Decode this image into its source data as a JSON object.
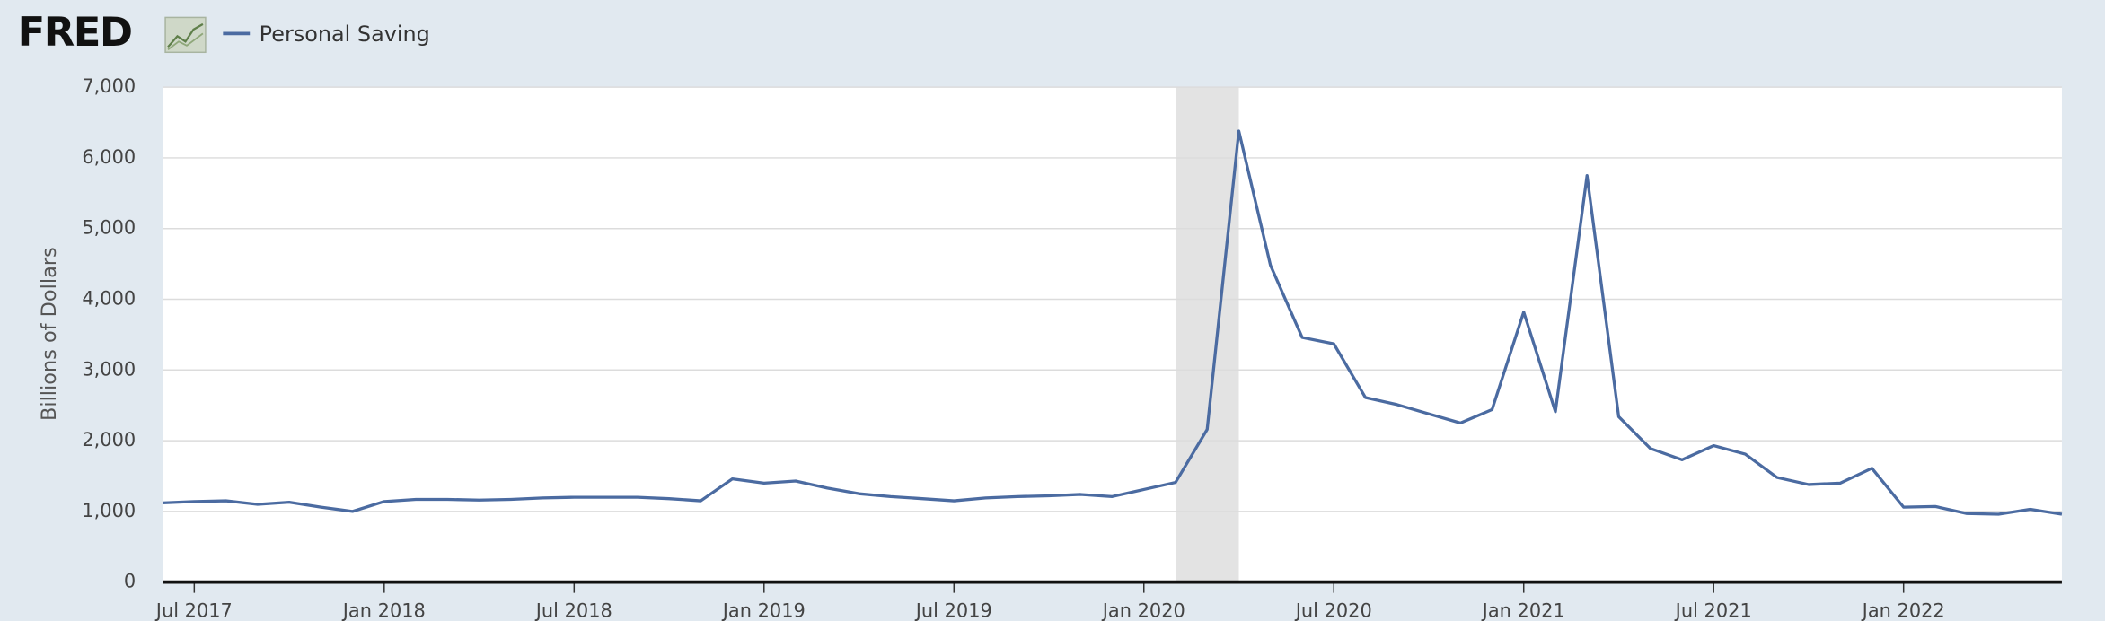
{
  "logo": "FRED",
  "chart_data": {
    "type": "line",
    "y_label": "Billions of Dollars",
    "x": [
      "2017-06",
      "2017-07",
      "2017-08",
      "2017-09",
      "2017-10",
      "2017-11",
      "2017-12",
      "2018-01",
      "2018-02",
      "2018-03",
      "2018-04",
      "2018-05",
      "2018-06",
      "2018-07",
      "2018-08",
      "2018-09",
      "2018-10",
      "2018-11",
      "2018-12",
      "2019-01",
      "2019-02",
      "2019-03",
      "2019-04",
      "2019-05",
      "2019-06",
      "2019-07",
      "2019-08",
      "2019-09",
      "2019-10",
      "2019-11",
      "2019-12",
      "2020-01",
      "2020-02",
      "2020-03",
      "2020-04",
      "2020-05",
      "2020-06",
      "2020-07",
      "2020-08",
      "2020-09",
      "2020-10",
      "2020-11",
      "2020-12",
      "2021-01",
      "2021-02",
      "2021-03",
      "2021-04",
      "2021-05",
      "2021-06",
      "2021-07",
      "2021-08",
      "2021-09",
      "2021-10",
      "2021-11",
      "2021-12",
      "2022-01",
      "2022-02",
      "2022-03",
      "2022-04",
      "2022-05",
      "2022-06"
    ],
    "series": [
      {
        "name": "Personal Saving",
        "color": "#4b6ba1",
        "values": [
          1120,
          1140,
          1150,
          1100,
          1130,
          1060,
          1000,
          1140,
          1170,
          1170,
          1160,
          1170,
          1190,
          1200,
          1200,
          1200,
          1180,
          1150,
          1460,
          1400,
          1430,
          1330,
          1250,
          1210,
          1180,
          1150,
          1190,
          1210,
          1220,
          1240,
          1210,
          1310,
          1410,
          2160,
          6380,
          4480,
          3460,
          3370,
          2610,
          2510,
          2380,
          2250,
          2440,
          3820,
          2410,
          5750,
          2340,
          1890,
          1730,
          1930,
          1810,
          1480,
          1380,
          1400,
          1610,
          1060,
          1070,
          970,
          960,
          1030,
          960
        ]
      }
    ],
    "xlim": [
      "2017-06",
      "2022-06"
    ],
    "xticks": [
      {
        "value": "2017-07",
        "label": "Jul 2017"
      },
      {
        "value": "2018-01",
        "label": "Jan 2018"
      },
      {
        "value": "2018-07",
        "label": "Jul 2018"
      },
      {
        "value": "2019-01",
        "label": "Jan 2019"
      },
      {
        "value": "2019-07",
        "label": "Jul 2019"
      },
      {
        "value": "2020-01",
        "label": "Jan 2020"
      },
      {
        "value": "2020-07",
        "label": "Jul 2020"
      },
      {
        "value": "2021-01",
        "label": "Jan 2021"
      },
      {
        "value": "2021-07",
        "label": "Jul 2021"
      },
      {
        "value": "2022-01",
        "label": "Jan 2022"
      }
    ],
    "ylim": [
      0,
      7000
    ],
    "yticks": [
      0,
      {
        "value": 1000,
        "label": "1,000"
      },
      {
        "value": 2000,
        "label": "2,000"
      },
      {
        "value": 3000,
        "label": "3,000"
      },
      {
        "value": 4000,
        "label": "4,000"
      },
      {
        "value": 5000,
        "label": "5,000"
      },
      {
        "value": 6000,
        "label": "6,000"
      },
      {
        "value": 7000,
        "label": "7,000"
      }
    ],
    "recession": {
      "start": "2020-02",
      "end": "2020-04",
      "color": "#e3e3e3"
    },
    "grid": true
  }
}
